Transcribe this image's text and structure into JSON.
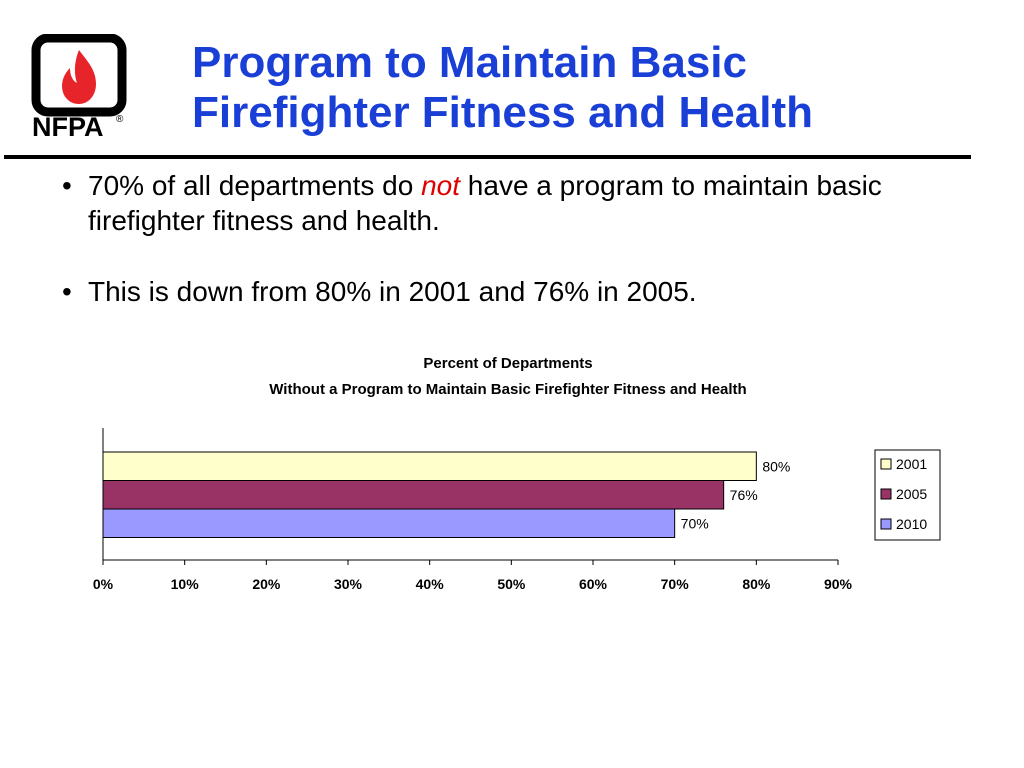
{
  "logo": {
    "text": "NFPA",
    "registered": "®",
    "colors": {
      "frame": "#000000",
      "flame": "#e8242b"
    }
  },
  "slide": {
    "title_line1": "Program to Maintain Basic",
    "title_line2": "Firefighter Fitness and Health",
    "title_color": "#1a3fd6",
    "bullet_glyph": "•",
    "bullets": [
      {
        "before": "70% of all departments do ",
        "emphasis": "not",
        "after": " have a program to maintain basic firefighter fitness and health."
      },
      {
        "text": "This is down from 80% in 2001 and 76% in 2005."
      }
    ]
  },
  "chart_data": {
    "type": "bar",
    "orientation": "horizontal",
    "title": "Percent of Departments",
    "subtitle": "Without a Program to Maintain Basic Firefighter Fitness and Health",
    "xlabel": "",
    "ylabel": "",
    "xlim": [
      0,
      90
    ],
    "x_ticks": [
      0,
      10,
      20,
      30,
      40,
      50,
      60,
      70,
      80,
      90
    ],
    "x_tick_labels": [
      "0%",
      "10%",
      "20%",
      "30%",
      "40%",
      "50%",
      "60%",
      "70%",
      "80%",
      "90%"
    ],
    "grid": false,
    "legend": "right",
    "series": [
      {
        "name": "2001",
        "value": 80,
        "label": "80%",
        "color": "#ffffcc"
      },
      {
        "name": "2005",
        "value": 76,
        "label": "76%",
        "color": "#993366"
      },
      {
        "name": "2010",
        "value": 70,
        "label": "70%",
        "color": "#9999ff"
      }
    ]
  }
}
